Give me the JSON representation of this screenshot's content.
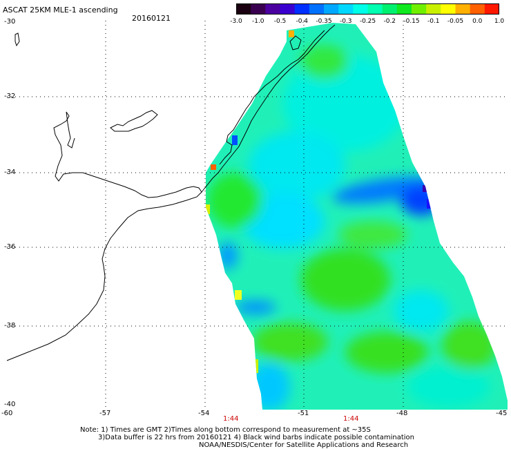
{
  "header": {
    "title": "ASCAT 25KM MLE-1 ascending",
    "date": "20160121"
  },
  "colorbar": {
    "labels": [
      "-3.0",
      "-1.0",
      "-0.5",
      "-0.4",
      "-0.35",
      "-0.3",
      "-0.25",
      "-0.2",
      "-0.15",
      "-0.1",
      "-0.05",
      "0.0",
      "1.0"
    ],
    "colors": [
      "#1a0010",
      "#3a0050",
      "#4b00a0",
      "#3a00d0",
      "#0030ff",
      "#0070ff",
      "#00a8ff",
      "#00d8ff",
      "#00ffe8",
      "#00ffb0",
      "#00f070",
      "#10e820",
      "#70f000",
      "#c8f000",
      "#ffff00",
      "#ffb000",
      "#ff6000",
      "#ff1800"
    ]
  },
  "axes": {
    "lat_labels": [
      "-30",
      "-32",
      "-34",
      "-36",
      "-38",
      "-40"
    ],
    "lon_labels": [
      "-60",
      "-57",
      "-54",
      "-51",
      "-48",
      "-45"
    ]
  },
  "time_labels": [
    "1:44",
    "1:44"
  ],
  "footer": {
    "line1": "Note: 1) Times are GMT 2)Times along bottom correspond to measurement at ~35S",
    "line2": "3)Data buffer is 22 hrs from 20160121 4) Black wind barbs indicate possible contamination",
    "line3": "NOAA/NESDIS/Center for Satellite Applications and Research"
  },
  "colors": {
    "swath_base": "#20f0b0",
    "coastline": "#000000",
    "grid": "#000000",
    "time_label": "#cc0000"
  }
}
